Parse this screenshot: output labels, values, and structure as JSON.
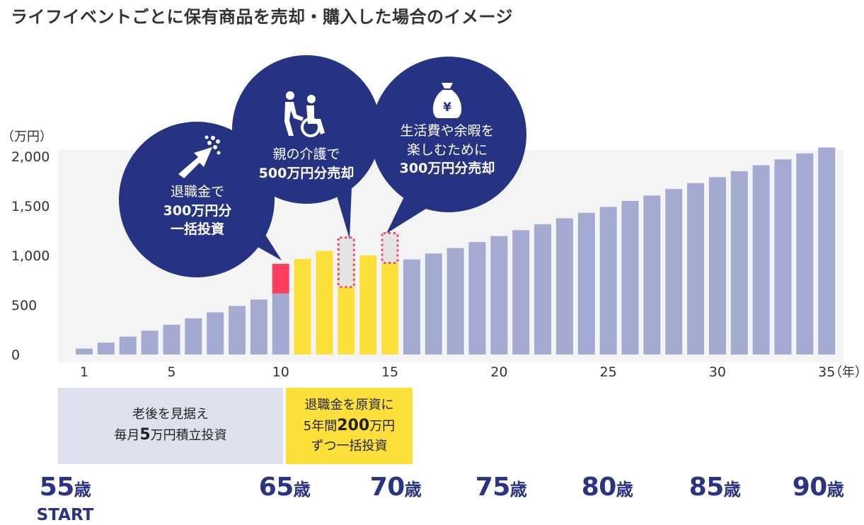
{
  "title": "ライフイベントごとに保有商品を売却・購入した場合のイメージ",
  "chart_data": {
    "type": "bar",
    "unit_label": "（万円）",
    "x_unit_label": "（年）",
    "ylim": [
      0,
      2100
    ],
    "y_ticks": [
      0,
      500,
      1000,
      1500,
      2000
    ],
    "y_tick_labels": [
      "0",
      "500",
      "1,000",
      "1,500",
      "2,000"
    ],
    "x_tick_labels": [
      {
        "year": 1,
        "label": "1"
      },
      {
        "year": 5,
        "label": "5"
      },
      {
        "year": 10,
        "label": "10"
      },
      {
        "year": 15,
        "label": "15"
      },
      {
        "year": 20,
        "label": "20"
      },
      {
        "year": 25,
        "label": "25"
      },
      {
        "year": 30,
        "label": "30"
      },
      {
        "year": 35,
        "label": "35"
      }
    ],
    "years": [
      1,
      2,
      3,
      4,
      5,
      6,
      7,
      8,
      9,
      10,
      11,
      12,
      13,
      14,
      15,
      16,
      17,
      18,
      19,
      20,
      21,
      22,
      23,
      24,
      25,
      26,
      27,
      28,
      29,
      30,
      31,
      32,
      33,
      34,
      35
    ],
    "values": [
      60,
      120,
      180,
      240,
      300,
      365,
      425,
      490,
      555,
      615,
      965,
      1045,
      940,
      1000,
      925,
      960,
      1020,
      1075,
      1135,
      1195,
      1255,
      1315,
      1375,
      1430,
      1490,
      1550,
      1605,
      1670,
      1730,
      1790,
      1850,
      1910,
      1970,
      2030,
      2090
    ],
    "extra_lump_sum": {
      "year": 10,
      "value": 300
    },
    "sold_portions": [
      {
        "year": 13,
        "from": 680,
        "to": 1180
      },
      {
        "year": 15,
        "from": 925,
        "to": 1225
      }
    ],
    "colors": {
      "accumulation": "#a4aad2",
      "lump_sum": "#ff3f5e",
      "invested": "#fde03a",
      "sold_outline": "#f04466",
      "sold_fill": "#e4e4e4",
      "bubble": "#263382"
    }
  },
  "bubbles": {
    "retirement": {
      "icon": "bouquet-icon",
      "line1": "退職金で",
      "line2": "300万円分",
      "line3": "一括投資"
    },
    "care": {
      "icon": "wheelchair-icon",
      "line1": "親の介護で",
      "line2": "500万円分売却"
    },
    "leisure": {
      "icon": "money-bag-icon",
      "line1": "生活費や余暇を",
      "line2": "楽しむために",
      "line3": "300万円分売却"
    }
  },
  "phases": {
    "monthly": {
      "line1": "老後を見据え",
      "line2_pre": "毎月",
      "line2_num": "5",
      "line2_post": "万円積立投資"
    },
    "lump": {
      "line1": "退職金を原資に",
      "line2_pre": "5年間",
      "line2_num": "200",
      "line2_post": "万円",
      "line3": "ずつ一括投資"
    }
  },
  "ages": [
    {
      "num": "55",
      "unit": "歳"
    },
    {
      "num": "65",
      "unit": "歳"
    },
    {
      "num": "70",
      "unit": "歳"
    },
    {
      "num": "75",
      "unit": "歳"
    },
    {
      "num": "80",
      "unit": "歳"
    },
    {
      "num": "85",
      "unit": "歳"
    },
    {
      "num": "90",
      "unit": "歳"
    }
  ],
  "start_label": "START"
}
